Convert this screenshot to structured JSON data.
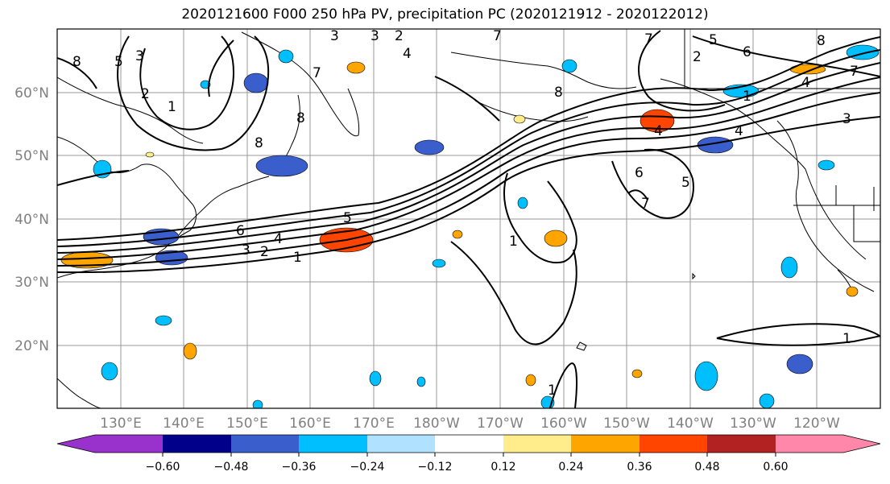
{
  "title": "2020121600 F000 250 hPa PV, precipitation PC (2020121912 - 2020122012)",
  "map": {
    "lat_labels": [
      "20°N",
      "30°N",
      "40°N",
      "50°N",
      "60°N"
    ],
    "lon_labels": [
      "130°E",
      "140°E",
      "150°E",
      "160°E",
      "170°E",
      "180°W",
      "170°W",
      "160°W",
      "150°W",
      "140°W",
      "130°W",
      "120°W"
    ],
    "grid": true
  },
  "pv_contour_labels": [
    "1",
    "2",
    "3",
    "4",
    "5",
    "6",
    "7",
    "8"
  ],
  "colorbar": {
    "ticks": [
      "−0.60",
      "−0.48",
      "−0.36",
      "−0.24",
      "−0.12",
      "0.12",
      "0.24",
      "0.36",
      "0.48",
      "0.60"
    ],
    "colors": [
      "#9932CC",
      "#00008B",
      "#3A5FCD",
      "#00BFFF",
      "#B0E2FF",
      "#FFFFFF",
      "#FFEC8B",
      "#FFA500",
      "#FF4500",
      "#B22222",
      "#FF88AA",
      "#FF88AA"
    ],
    "extend": "both"
  }
}
